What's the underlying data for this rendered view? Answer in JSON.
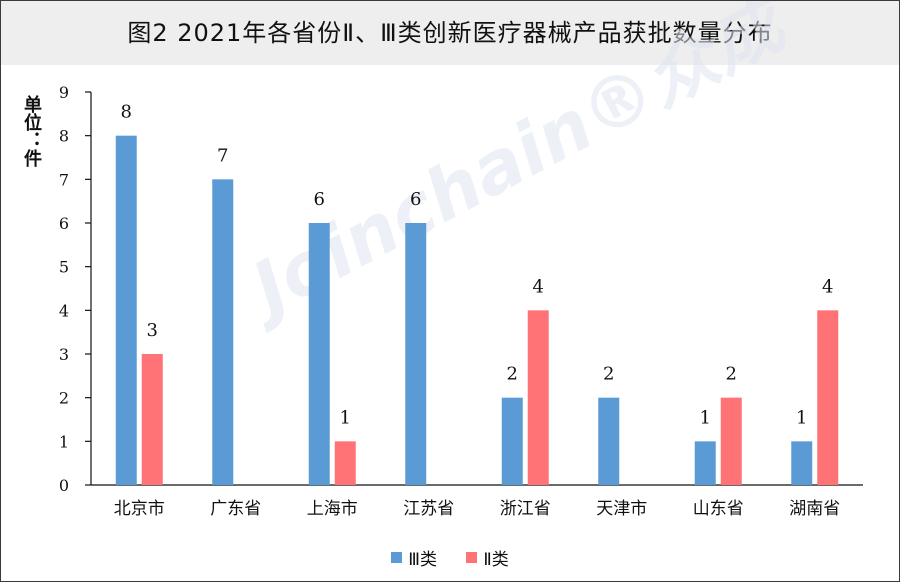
{
  "chart_data": {
    "type": "bar",
    "title": "图2  2021年各省份Ⅱ、Ⅲ类创新医疗器械产品获批数量分布",
    "ylabel": "单位：件",
    "ylim": [
      0,
      9
    ],
    "yticks": [
      0,
      1,
      2,
      3,
      4,
      5,
      6,
      7,
      8,
      9
    ],
    "categories": [
      "北京市",
      "广东省",
      "上海市",
      "江苏省",
      "浙江省",
      "天津市",
      "山东省",
      "湖南省"
    ],
    "series": [
      {
        "name": "Ⅲ类",
        "color": "#5b9bd5",
        "values": [
          8,
          7,
          6,
          6,
          2,
          2,
          1,
          1
        ]
      },
      {
        "name": "Ⅱ类",
        "color": "#ff7276",
        "values": [
          3,
          null,
          1,
          null,
          4,
          null,
          2,
          4
        ]
      }
    ],
    "data_labels": true,
    "legend_position": "bottom",
    "grid": false
  },
  "watermark": {
    "text": "Joinchain®众成"
  }
}
